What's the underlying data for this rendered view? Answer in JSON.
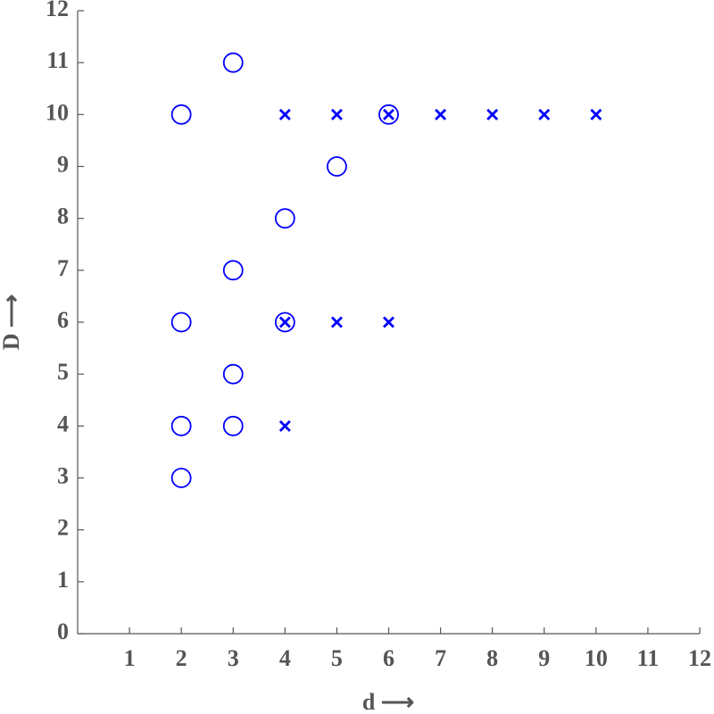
{
  "chart_data": {
    "type": "scatter",
    "x_label": "d ⟶",
    "y_label": "D ⟶",
    "xlim": [
      0,
      12
    ],
    "ylim": [
      0,
      12
    ],
    "xticks": [
      1,
      2,
      3,
      4,
      5,
      6,
      7,
      8,
      9,
      10,
      11,
      12
    ],
    "yticks": [
      0,
      1,
      2,
      3,
      4,
      5,
      6,
      7,
      8,
      9,
      10,
      11,
      12
    ],
    "grid": false,
    "series": [
      {
        "marker": "o",
        "color": "#0000ff",
        "x": [
          2,
          3,
          2,
          3,
          4,
          5,
          6,
          4,
          3,
          2,
          3,
          2
        ],
        "values": [
          10,
          11,
          6,
          7,
          8,
          9,
          10,
          6,
          5,
          4,
          4,
          3
        ]
      },
      {
        "marker": "x",
        "color": "#0000ff",
        "x": [
          4,
          5,
          6,
          7,
          8,
          9,
          10,
          4,
          5,
          6,
          4
        ],
        "values": [
          10,
          10,
          10,
          10,
          10,
          10,
          10,
          6,
          6,
          6,
          4
        ]
      }
    ]
  }
}
